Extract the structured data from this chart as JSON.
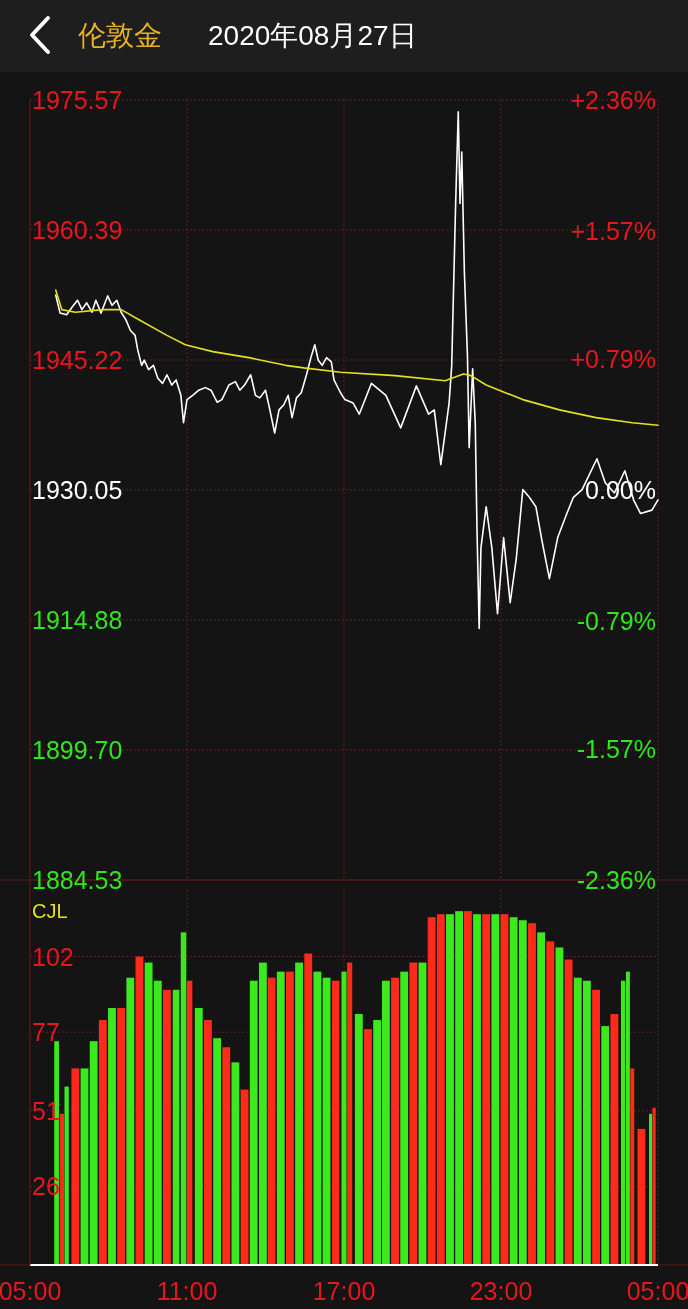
{
  "chart_data": [
    {
      "type": "line",
      "title": "伦敦金",
      "subtitle": "2020年08月27日",
      "series": [
        {
          "color": "#ffffff",
          "x": [
            "2020-08-27T05:59",
            "2020-08-27T06:09",
            "2020-08-27T06:24",
            "2020-08-27T06:38",
            "2020-08-27T06:49",
            "2020-08-27T06:59",
            "2020-08-27T07:10",
            "2020-08-27T07:22",
            "2020-08-27T07:31",
            "2020-08-27T07:43",
            "2020-08-27T07:58",
            "2020-08-27T08:08",
            "2020-08-27T08:19",
            "2020-08-27T08:29",
            "2020-08-27T08:40",
            "2020-08-27T08:50",
            "2020-08-27T09:01",
            "2020-08-27T09:07",
            "2020-08-27T09:16",
            "2020-08-27T09:22",
            "2020-08-27T09:32",
            "2020-08-27T09:43",
            "2020-08-27T09:53",
            "2020-08-27T10:04",
            "2020-08-27T10:14",
            "2020-08-27T10:25",
            "2020-08-27T10:35",
            "2020-08-27T10:46",
            "2020-08-27T10:52",
            "2020-08-27T11:00",
            "2020-08-27T11:13",
            "2020-08-27T11:27",
            "2020-08-27T11:42",
            "2020-08-27T11:55",
            "2020-08-27T12:09",
            "2020-08-27T12:20",
            "2020-08-27T12:36",
            "2020-08-27T12:51",
            "2020-08-27T13:01",
            "2020-08-27T13:12",
            "2020-08-27T13:26",
            "2020-08-27T13:37",
            "2020-08-27T13:47",
            "2020-08-27T14:00",
            "2020-08-27T14:10",
            "2020-08-27T14:21",
            "2020-08-27T14:31",
            "2020-08-27T14:42",
            "2020-08-27T14:52",
            "2020-08-27T15:01",
            "2020-08-27T15:11",
            "2020-08-27T15:22",
            "2020-08-27T15:34",
            "2020-08-27T15:44",
            "2020-08-27T15:53",
            "2020-08-27T16:01",
            "2020-08-27T16:10",
            "2020-08-27T16:20",
            "2020-08-27T16:31",
            "2020-08-27T16:37",
            "2020-08-27T16:52",
            "2020-08-27T17:02",
            "2020-08-27T17:21",
            "2020-08-27T17:35",
            "2020-08-27T18:03",
            "2020-08-27T18:36",
            "2020-08-27T19:10",
            "2020-08-27T19:46",
            "2020-08-27T20:14",
            "2020-08-27T20:27",
            "2020-08-27T20:42",
            "2020-08-27T21:01",
            "2020-08-27T21:07",
            "2020-08-27T21:16",
            "2020-08-27T21:22",
            "2020-08-27T21:26",
            "2020-08-27T21:30",
            "2020-08-27T21:36",
            "2020-08-27T21:43",
            "2020-08-27T21:47",
            "2020-08-27T21:55",
            "2020-08-27T22:01",
            "2020-08-27T22:05",
            "2020-08-27T22:10",
            "2020-08-27T22:14",
            "2020-08-27T22:26",
            "2020-08-27T22:39",
            "2020-08-27T22:52",
            "2020-08-27T23:06",
            "2020-08-27T23:21",
            "2020-08-27T23:35",
            "2020-08-27T23:50",
            "2020-08-28T00:05",
            "2020-08-28T00:20",
            "2020-08-28T00:34",
            "2020-08-28T00:51",
            "2020-08-28T01:10",
            "2020-08-28T01:31",
            "2020-08-28T01:46",
            "2020-08-28T02:06",
            "2020-08-28T02:40",
            "2020-08-28T02:59",
            "2020-08-28T03:20",
            "2020-08-28T03:44",
            "2020-08-28T04:04",
            "2020-08-28T04:20",
            "2020-08-28T04:46",
            "2020-08-28T05:00"
          ],
          "values": [
            1952.8,
            1950.7,
            1950.5,
            1951.5,
            1952.2,
            1951.1,
            1951.9,
            1950.8,
            1952.2,
            1950.7,
            1952.7,
            1951.6,
            1952.2,
            1950.8,
            1949.9,
            1948.7,
            1948.1,
            1946.4,
            1944.6,
            1945.2,
            1944.1,
            1944.6,
            1943.1,
            1942.5,
            1943.5,
            1942.3,
            1942.9,
            1941.1,
            1937.9,
            1940.6,
            1941.1,
            1941.7,
            1942.0,
            1941.7,
            1940.3,
            1940.6,
            1942.3,
            1942.7,
            1941.7,
            1942.3,
            1943.5,
            1941.1,
            1940.8,
            1941.7,
            1939.4,
            1936.7,
            1939.4,
            1940.0,
            1941.1,
            1938.5,
            1940.8,
            1941.4,
            1943.5,
            1945.5,
            1947.0,
            1945.2,
            1944.6,
            1945.5,
            1945.0,
            1942.9,
            1941.4,
            1940.6,
            1940.2,
            1938.9,
            1942.5,
            1941.1,
            1937.3,
            1942.2,
            1938.9,
            1939.4,
            1933.0,
            1940.2,
            1944.6,
            1963.5,
            1974.2,
            1963.5,
            1969.5,
            1955.5,
            1945.8,
            1935.0,
            1944.2,
            1937.8,
            1925.3,
            1913.9,
            1923.3,
            1928.1,
            1923.3,
            1915.6,
            1924.5,
            1916.9,
            1922.0,
            1930.1,
            1929.2,
            1928.1,
            1924.1,
            1919.7,
            1924.5,
            1927.3,
            1929.2,
            1930.1,
            1933.7,
            1930.9,
            1929.7,
            1932.3,
            1928.9,
            1927.3,
            1927.7,
            1928.9
          ]
        },
        {
          "color": "#e6e01e",
          "x": [
            "2020-08-27T05:59",
            "2020-08-27T06:13",
            "2020-08-27T06:44",
            "2020-08-27T07:47",
            "2020-08-27T08:29",
            "2020-08-27T09:11",
            "2020-08-27T10:14",
            "2020-08-27T10:56",
            "2020-08-27T11:59",
            "2020-08-27T13:22",
            "2020-08-27T14:46",
            "2020-08-27T15:28",
            "2020-08-27T16:52",
            "2020-08-27T18:57",
            "2020-08-27T20:52",
            "2020-08-27T21:07",
            "2020-08-27T21:34",
            "2020-08-27T21:51",
            "2020-08-27T22:26",
            "2020-08-27T23:50",
            "2020-08-28T01:14",
            "2020-08-28T02:38",
            "2020-08-28T04:01",
            "2020-08-28T05:00"
          ],
          "values": [
            1953.4,
            1951.1,
            1950.8,
            1951.1,
            1951.1,
            1949.9,
            1948.1,
            1947.0,
            1946.2,
            1945.5,
            1944.6,
            1944.3,
            1943.8,
            1943.4,
            1942.8,
            1943.1,
            1943.6,
            1943.4,
            1942.3,
            1940.6,
            1939.4,
            1938.5,
            1937.9,
            1937.6
          ]
        }
      ],
      "xlim": [
        "2020-08-27T05:00",
        "2020-08-28T05:00"
      ],
      "xticks": [
        {
          "value": "2020-08-27T05:00",
          "label": null
        },
        {
          "value": "2020-08-27T11:00",
          "label": null
        },
        {
          "value": "2020-08-27T17:00",
          "label": null
        },
        {
          "value": "2020-08-27T23:00",
          "label": null
        },
        {
          "value": "2020-08-28T05:00",
          "label": null
        }
      ],
      "ylim": [
        1884.53,
        1975.57
      ],
      "yticks": [
        {
          "value": 1884.53,
          "label": "1884.53"
        },
        {
          "value": 1899.7,
          "label": "1899.70"
        },
        {
          "value": 1914.88,
          "label": "1914.88"
        },
        {
          "value": 1930.05,
          "label": "1930.05"
        },
        {
          "value": 1945.22,
          "label": "1945.22"
        },
        {
          "value": 1960.39,
          "label": "1960.39"
        },
        {
          "value": 1975.57,
          "label": "1975.57"
        }
      ],
      "y2lim": [
        -2.36,
        2.36
      ],
      "y2ticks": [
        {
          "value": -2.36,
          "label": "-2.36%"
        },
        {
          "value": -1.57,
          "label": "-1.57%"
        },
        {
          "value": -0.79,
          "label": "-0.79%"
        },
        {
          "value": 0,
          "label": "0.00%"
        },
        {
          "value": 0.79,
          "label": "+0.79%"
        },
        {
          "value": 1.57,
          "label": "+1.57%"
        },
        {
          "value": 2.36,
          "label": "+2.36%"
        }
      ],
      "grid": true,
      "tick_labels": "y"
    },
    {
      "type": "bar",
      "title": "CJL",
      "x": [
        "2020-08-27T06:01",
        "2020-08-27T06:13",
        "2020-08-27T06:24",
        "2020-08-27T06:44",
        "2020-08-27T07:05",
        "2020-08-27T07:26",
        "2020-08-27T07:47",
        "2020-08-27T08:08",
        "2020-08-27T08:29",
        "2020-08-27T08:50",
        "2020-08-27T09:11",
        "2020-08-27T09:32",
        "2020-08-27T09:53",
        "2020-08-27T10:14",
        "2020-08-27T10:35",
        "2020-08-27T10:52",
        "2020-08-27T11:06",
        "2020-08-27T11:27",
        "2020-08-27T11:48",
        "2020-08-27T12:09",
        "2020-08-27T12:30",
        "2020-08-27T12:51",
        "2020-08-27T13:12",
        "2020-08-27T13:33",
        "2020-08-27T13:54",
        "2020-08-27T14:14",
        "2020-08-27T14:35",
        "2020-08-27T14:56",
        "2020-08-27T15:17",
        "2020-08-27T15:38",
        "2020-08-27T15:59",
        "2020-08-27T16:20",
        "2020-08-27T16:41",
        "2020-08-27T17:00",
        "2020-08-27T17:13",
        "2020-08-27T17:34",
        "2020-08-27T17:55",
        "2020-08-27T18:16",
        "2020-08-27T18:36",
        "2020-08-27T18:57",
        "2020-08-27T19:18",
        "2020-08-27T19:39",
        "2020-08-27T20:00",
        "2020-08-27T20:21",
        "2020-08-27T20:42",
        "2020-08-27T21:03",
        "2020-08-27T21:24",
        "2020-08-27T21:44",
        "2020-08-27T22:05",
        "2020-08-27T22:26",
        "2020-08-27T22:47",
        "2020-08-27T23:08",
        "2020-08-27T23:29",
        "2020-08-27T23:50",
        "2020-08-28T00:11",
        "2020-08-28T00:32",
        "2020-08-28T00:53",
        "2020-08-28T01:14",
        "2020-08-28T01:35",
        "2020-08-28T01:56",
        "2020-08-28T02:17",
        "2020-08-28T02:38",
        "2020-08-28T02:59",
        "2020-08-28T03:20",
        "2020-08-28T03:40",
        "2020-08-28T03:51",
        "2020-08-28T04:01",
        "2020-08-28T04:22",
        "2020-08-28T04:43",
        "2020-08-28T04:51"
      ],
      "values": [
        74,
        50,
        59,
        65,
        65,
        74,
        81,
        85,
        85,
        95,
        102,
        100,
        94,
        91,
        91,
        110,
        94,
        85,
        81,
        75,
        72,
        67,
        58,
        94,
        100,
        95,
        97,
        97,
        100,
        103,
        97,
        95,
        94,
        97,
        100,
        83,
        78,
        81,
        94,
        95,
        97,
        100,
        100,
        115,
        116,
        116,
        117,
        117,
        116,
        116,
        116,
        116,
        115,
        114,
        113,
        110,
        107,
        105,
        101,
        95,
        94,
        91,
        79,
        83,
        94,
        97,
        65,
        45,
        50,
        52
      ],
      "colors": [
        "#3ce81e",
        "#ff2a1a",
        "#3ce81e",
        "#ff2a1a",
        "#3ce81e",
        "#3ce81e",
        "#ff2a1a",
        "#3ce81e",
        "#ff2a1a",
        "#3ce81e",
        "#ff2a1a",
        "#3ce81e",
        "#3ce81e",
        "#ff2a1a",
        "#3ce81e",
        "#3ce81e",
        "#ff2a1a",
        "#3ce81e",
        "#ff2a1a",
        "#3ce81e",
        "#ff2a1a",
        "#3ce81e",
        "#ff2a1a",
        "#3ce81e",
        "#3ce81e",
        "#ff2a1a",
        "#3ce81e",
        "#ff2a1a",
        "#3ce81e",
        "#ff2a1a",
        "#3ce81e",
        "#3ce81e",
        "#ff2a1a",
        "#3ce81e",
        "#ff2a1a",
        "#3ce81e",
        "#ff2a1a",
        "#3ce81e",
        "#3ce81e",
        "#ff2a1a",
        "#3ce81e",
        "#ff2a1a",
        "#3ce81e",
        "#ff2a1a",
        "#ff2a1a",
        "#3ce81e",
        "#3ce81e",
        "#ff2a1a",
        "#3ce81e",
        "#ff2a1a",
        "#3ce81e",
        "#ff2a1a",
        "#3ce81e",
        "#3ce81e",
        "#ff2a1a",
        "#3ce81e",
        "#ff2a1a",
        "#3ce81e",
        "#ff2a1a",
        "#3ce81e",
        "#3ce81e",
        "#ff2a1a",
        "#3ce81e",
        "#ff2a1a",
        "#3ce81e",
        "#3ce81e",
        "#ff2a1a",
        "#ff2a1a",
        "#3ce81e",
        "#ff2a1a"
      ],
      "xlim": [
        "2020-08-27T05:00",
        "2020-08-28T05:00"
      ],
      "xticks": [
        {
          "value": "2020-08-27T05:00",
          "label": "05:00"
        },
        {
          "value": "2020-08-27T11:00",
          "label": "11:00"
        },
        {
          "value": "2020-08-27T17:00",
          "label": "17:00"
        },
        {
          "value": "2020-08-27T23:00",
          "label": "23:00"
        },
        {
          "value": "2020-08-28T05:00",
          "label": "05:00"
        }
      ],
      "ylim": [
        0,
        124
      ],
      "yticks": [
        26,
        51,
        77,
        102
      ],
      "grid": true
    }
  ]
}
